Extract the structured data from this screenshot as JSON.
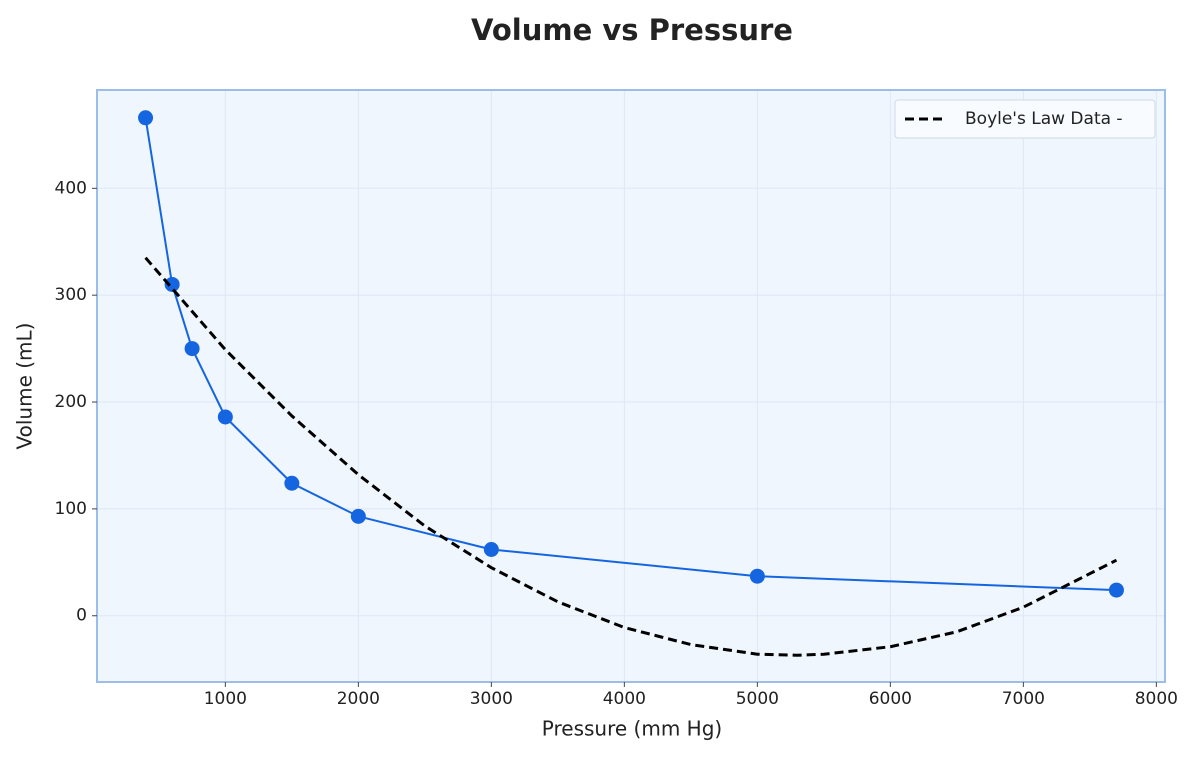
{
  "chart_data": {
    "type": "line",
    "title": "Volume vs Pressure",
    "x_label": "Pressure (mm Hg)",
    "y_label": "Volume (mL)",
    "series": [
      {
        "color": "#1565e0",
        "markers": true,
        "dashed": false,
        "x": [
          400,
          600,
          750,
          1000,
          1500,
          2000,
          3000,
          5000,
          7700
        ],
        "values": [
          466,
          310,
          250,
          186,
          124,
          93,
          62,
          37,
          24
        ]
      },
      {
        "name": "Boyle's Law Data -",
        "color": "#000000",
        "markers": false,
        "dashed": true,
        "x": [
          400,
          1000,
          1500,
          2000,
          2500,
          3000,
          3500,
          4000,
          4500,
          5000,
          5300,
          5500,
          6000,
          6500,
          7000,
          7700
        ],
        "values": [
          335,
          249,
          187,
          132,
          84,
          45,
          13,
          -11,
          -27,
          -36,
          -37,
          -36,
          -29,
          -15,
          8,
          52
        ]
      }
    ],
    "xlim": [
      35,
      8065
    ],
    "xticks": [
      1000,
      2000,
      3000,
      4000,
      5000,
      6000,
      7000,
      8000
    ],
    "ylim": [
      -62,
      492
    ],
    "yticks": [
      0,
      100,
      200,
      300,
      400
    ],
    "grid": true,
    "legend": "upper right"
  }
}
